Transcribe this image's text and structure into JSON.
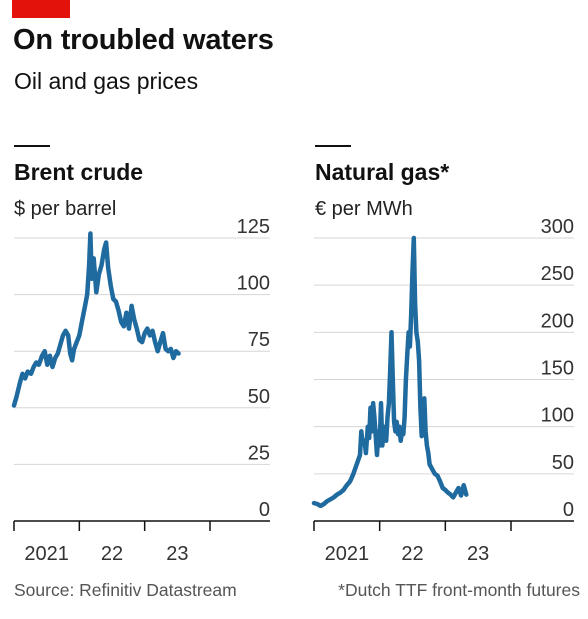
{
  "header": {
    "title": "On troubled waters",
    "subtitle": "Oil and gas prices"
  },
  "footer": {
    "source": "Source: Refinitiv Datastream",
    "note": "*Dutch TTF front-month futures"
  },
  "colors": {
    "line": "#1f6a9e",
    "accent": "#e3120b",
    "axis": "#111111",
    "grid": "#d6d6d6"
  },
  "chart_data": [
    {
      "type": "line",
      "title": "Brent crude",
      "ylabel": "$ per barrel",
      "yticks": [
        "125",
        "100",
        "75",
        "50",
        "25",
        "0"
      ],
      "ytick_values": [
        125,
        100,
        75,
        50,
        25,
        0
      ],
      "ylim": [
        0,
        125
      ],
      "xticks": [
        "2021",
        "22",
        "23"
      ],
      "xtick_values": [
        2021.5,
        2022.5,
        2023.5
      ],
      "xlim": [
        2021.0,
        2024.0
      ],
      "grid": true,
      "series": [
        {
          "values": [
            [
              2021.0,
              51
            ],
            [
              2021.04,
              55
            ],
            [
              2021.09,
              61
            ],
            [
              2021.13,
              65
            ],
            [
              2021.17,
              63
            ],
            [
              2021.21,
              66
            ],
            [
              2021.26,
              65
            ],
            [
              2021.3,
              68
            ],
            [
              2021.34,
              70
            ],
            [
              2021.38,
              69
            ],
            [
              2021.43,
              73
            ],
            [
              2021.47,
              75
            ],
            [
              2021.51,
              69
            ],
            [
              2021.55,
              73
            ],
            [
              2021.59,
              68
            ],
            [
              2021.63,
              72
            ],
            [
              2021.67,
              74
            ],
            [
              2021.71,
              78
            ],
            [
              2021.75,
              82
            ],
            [
              2021.79,
              84
            ],
            [
              2021.83,
              82
            ],
            [
              2021.86,
              74
            ],
            [
              2021.89,
              71
            ],
            [
              2021.92,
              76
            ],
            [
              2021.96,
              79
            ],
            [
              2022.0,
              82
            ],
            [
              2022.04,
              88
            ],
            [
              2022.08,
              94
            ],
            [
              2022.12,
              100
            ],
            [
              2022.15,
              113
            ],
            [
              2022.17,
              127
            ],
            [
              2022.19,
              107
            ],
            [
              2022.22,
              116
            ],
            [
              2022.26,
              101
            ],
            [
              2022.3,
              109
            ],
            [
              2022.34,
              113
            ],
            [
              2022.38,
              120
            ],
            [
              2022.41,
              123
            ],
            [
              2022.44,
              112
            ],
            [
              2022.48,
              104
            ],
            [
              2022.52,
              98
            ],
            [
              2022.56,
              97
            ],
            [
              2022.6,
              93
            ],
            [
              2022.64,
              88
            ],
            [
              2022.68,
              86
            ],
            [
              2022.72,
              92
            ],
            [
              2022.76,
              85
            ],
            [
              2022.8,
              95
            ],
            [
              2022.84,
              89
            ],
            [
              2022.88,
              85
            ],
            [
              2022.92,
              80
            ],
            [
              2022.96,
              79
            ],
            [
              2023.0,
              83
            ],
            [
              2023.04,
              85
            ],
            [
              2023.08,
              82
            ],
            [
              2023.12,
              84
            ],
            [
              2023.16,
              79
            ],
            [
              2023.2,
              75
            ],
            [
              2023.24,
              79
            ],
            [
              2023.28,
              83
            ],
            [
              2023.32,
              76
            ],
            [
              2023.36,
              75
            ],
            [
              2023.4,
              76
            ],
            [
              2023.44,
              72
            ],
            [
              2023.48,
              75
            ],
            [
              2023.52,
              74
            ]
          ]
        }
      ]
    },
    {
      "type": "line",
      "title": "Natural gas*",
      "ylabel": "€ per MWh",
      "yticks": [
        "300",
        "250",
        "200",
        "150",
        "100",
        "50",
        "0"
      ],
      "ytick_values": [
        300,
        250,
        200,
        150,
        100,
        50,
        0
      ],
      "ylim": [
        0,
        300
      ],
      "xticks": [
        "2021",
        "22",
        "23"
      ],
      "xtick_values": [
        2021.5,
        2022.5,
        2023.5
      ],
      "xlim": [
        2021.0,
        2024.0
      ],
      "grid": true,
      "series": [
        {
          "values": [
            [
              2021.0,
              19
            ],
            [
              2021.05,
              18
            ],
            [
              2021.1,
              16
            ],
            [
              2021.15,
              18
            ],
            [
              2021.2,
              21
            ],
            [
              2021.25,
              23
            ],
            [
              2021.3,
              25
            ],
            [
              2021.35,
              28
            ],
            [
              2021.4,
              30
            ],
            [
              2021.45,
              33
            ],
            [
              2021.5,
              38
            ],
            [
              2021.55,
              42
            ],
            [
              2021.6,
              50
            ],
            [
              2021.65,
              60
            ],
            [
              2021.7,
              70
            ],
            [
              2021.72,
              95
            ],
            [
              2021.74,
              82
            ],
            [
              2021.77,
              85
            ],
            [
              2021.79,
              72
            ],
            [
              2021.82,
              100
            ],
            [
              2021.84,
              88
            ],
            [
              2021.86,
              120
            ],
            [
              2021.88,
              95
            ],
            [
              2021.9,
              125
            ],
            [
              2021.92,
              110
            ],
            [
              2021.94,
              90
            ],
            [
              2021.96,
              70
            ],
            [
              2021.98,
              95
            ],
            [
              2022.0,
              80
            ],
            [
              2022.02,
              125
            ],
            [
              2022.04,
              80
            ],
            [
              2022.06,
              95
            ],
            [
              2022.08,
              100
            ],
            [
              2022.1,
              85
            ],
            [
              2022.12,
              110
            ],
            [
              2022.14,
              125
            ],
            [
              2022.16,
              160
            ],
            [
              2022.18,
              200
            ],
            [
              2022.2,
              150
            ],
            [
              2022.22,
              105
            ],
            [
              2022.24,
              95
            ],
            [
              2022.26,
              105
            ],
            [
              2022.28,
              92
            ],
            [
              2022.3,
              100
            ],
            [
              2022.32,
              85
            ],
            [
              2022.34,
              95
            ],
            [
              2022.36,
              92
            ],
            [
              2022.38,
              110
            ],
            [
              2022.4,
              150
            ],
            [
              2022.42,
              175
            ],
            [
              2022.44,
              200
            ],
            [
              2022.46,
              185
            ],
            [
              2022.48,
              220
            ],
            [
              2022.5,
              265
            ],
            [
              2022.52,
              300
            ],
            [
              2022.54,
              230
            ],
            [
              2022.56,
              200
            ],
            [
              2022.58,
              190
            ],
            [
              2022.6,
              170
            ],
            [
              2022.62,
              120
            ],
            [
              2022.64,
              90
            ],
            [
              2022.66,
              110
            ],
            [
              2022.68,
              130
            ],
            [
              2022.7,
              95
            ],
            [
              2022.72,
              80
            ],
            [
              2022.74,
              72
            ],
            [
              2022.76,
              60
            ],
            [
              2022.8,
              55
            ],
            [
              2022.84,
              50
            ],
            [
              2022.88,
              48
            ],
            [
              2022.92,
              42
            ],
            [
              2022.96,
              35
            ],
            [
              2023.0,
              33
            ],
            [
              2023.04,
              30
            ],
            [
              2023.08,
              28
            ],
            [
              2023.12,
              25
            ],
            [
              2023.16,
              30
            ],
            [
              2023.2,
              35
            ],
            [
              2023.24,
              27
            ],
            [
              2023.28,
              38
            ],
            [
              2023.32,
              28
            ]
          ]
        }
      ]
    }
  ]
}
